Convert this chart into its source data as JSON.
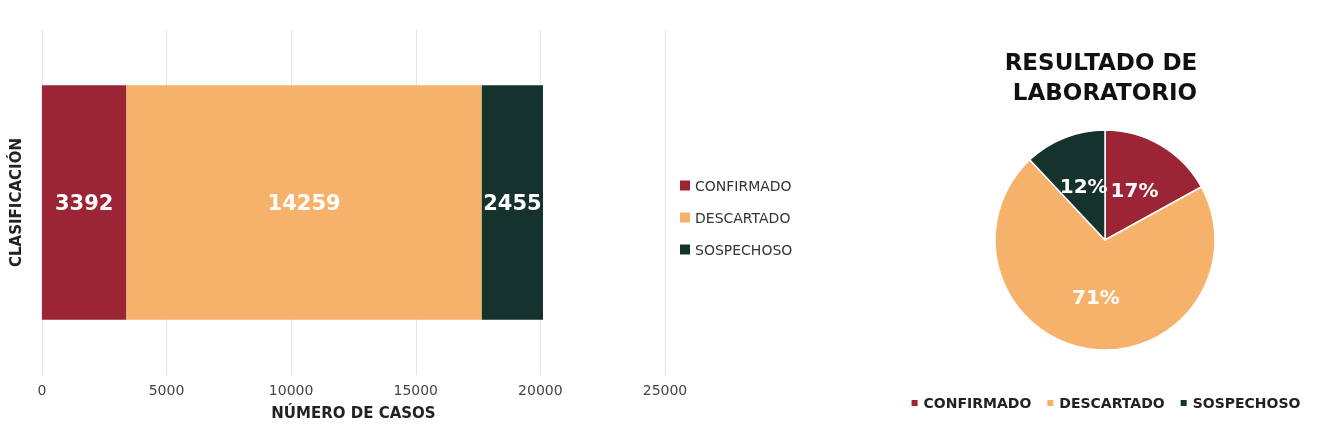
{
  "chart_data": [
    {
      "type": "bar",
      "orientation": "horizontal",
      "stacked": true,
      "xlabel": "NÚMERO DE CASOS",
      "ylabel": "CLASIFICACIÓN",
      "categories": [
        null
      ],
      "series": [
        {
          "name": "CONFIRMADO",
          "color": "#9b2535",
          "values": [
            3392
          ]
        },
        {
          "name": "DESCARTADO",
          "color": "#f6b26b",
          "values": [
            14259
          ]
        },
        {
          "name": "SOSPECHOSO",
          "color": "#15322c",
          "values": [
            2455
          ]
        }
      ],
      "xlim": [
        0,
        25000
      ],
      "xticks": [
        0,
        5000,
        10000,
        15000,
        20000,
        25000
      ],
      "grid": "x",
      "legend": "right",
      "data_labels": true
    },
    {
      "type": "pie",
      "title": "RESULTADO DE LABORATORIO",
      "categories": [
        "CONFIRMADO",
        "DESCARTADO",
        "SOSPECHOSO"
      ],
      "values": [
        17,
        71,
        12
      ],
      "colors": [
        "#9b2535",
        "#f6b26b",
        "#15322c"
      ],
      "value_labels": [
        "17%",
        "71%",
        "12%"
      ],
      "legend": "bottom"
    }
  ]
}
